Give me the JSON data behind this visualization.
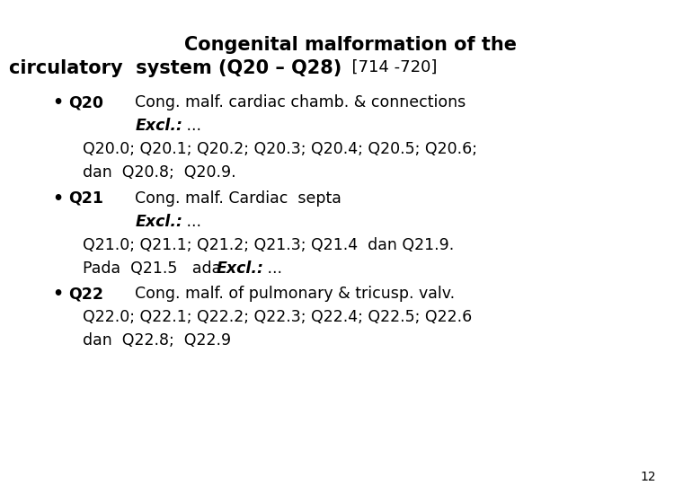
{
  "background_color": "#ffffff",
  "title_line1": "Congenital malformation of the",
  "title_line2_bold": "circulatory  system (Q20 – Q28)",
  "title_line2_normal": "  [714 -720]",
  "title_fs": 15,
  "title2_fs": 15,
  "bracket_fs": 13,
  "body_fs": 12.5,
  "page_number": "12"
}
